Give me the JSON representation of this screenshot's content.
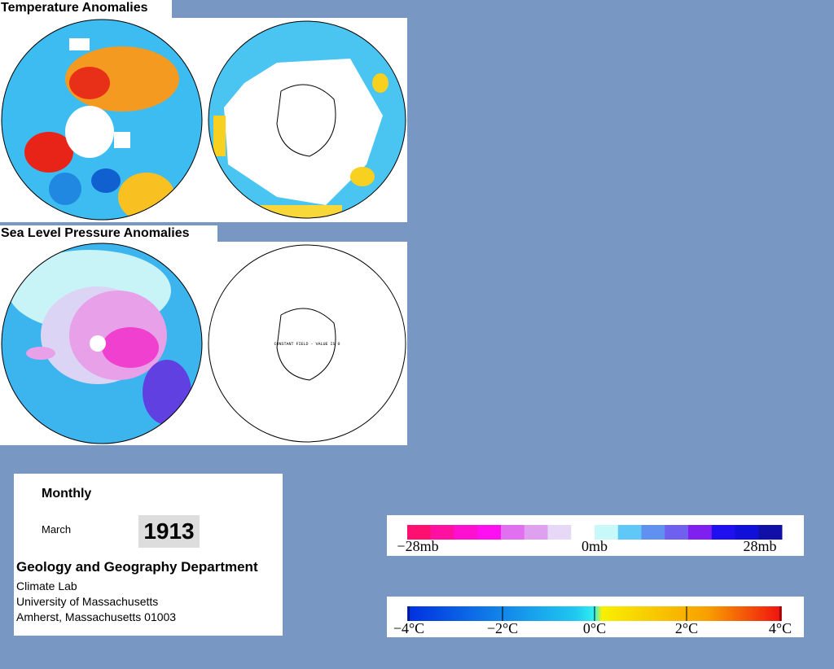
{
  "temperature": {
    "title": "Temperature Anomalies"
  },
  "pressure": {
    "title": "Sea Level Pressure Anomalies",
    "note": "CONSTANT FIELD - VALUE IS 0"
  },
  "info": {
    "period": "Monthly",
    "month": "March",
    "year": "1913",
    "department": "Geology and Geography Department",
    "lines": [
      "Climate Lab",
      "University of Massachusetts",
      "Amherst, Massachusetts 01003"
    ]
  },
  "pressure_legend": {
    "labels": [
      "−28mb",
      "0mb",
      "28mb"
    ]
  },
  "temperature_legend": {
    "labels": [
      "−4°C",
      "−2°C",
      "0°C",
      "2°C",
      "4°C"
    ]
  }
}
